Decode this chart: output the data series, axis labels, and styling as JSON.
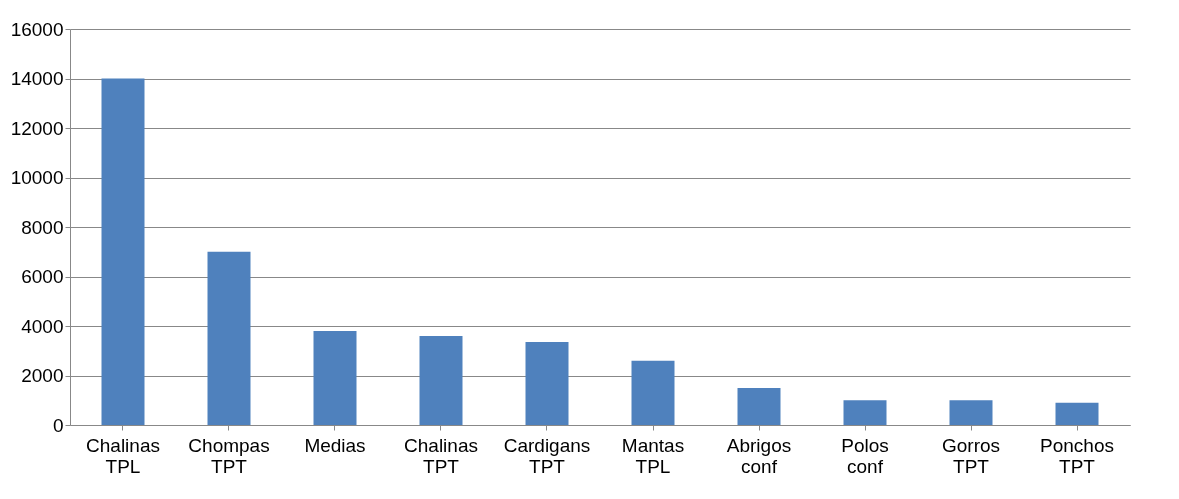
{
  "chart_data": {
    "type": "bar",
    "categories": [
      "Chalinas TPL",
      "Chompas TPT",
      "Medias",
      "Chalinas TPT",
      "Cardigans TPT",
      "Mantas TPL",
      "Abrigos conf",
      "Polos conf",
      "Gorros TPT",
      "Ponchos TPT"
    ],
    "values": [
      14000,
      7000,
      3800,
      3600,
      3350,
      2600,
      1500,
      1000,
      1000,
      900
    ],
    "color": "#4f81bd",
    "ylim": [
      0,
      16000
    ],
    "yticks": [
      0,
      2000,
      4000,
      6000,
      8000,
      10000,
      12000,
      14000,
      16000
    ],
    "grid": "y"
  }
}
